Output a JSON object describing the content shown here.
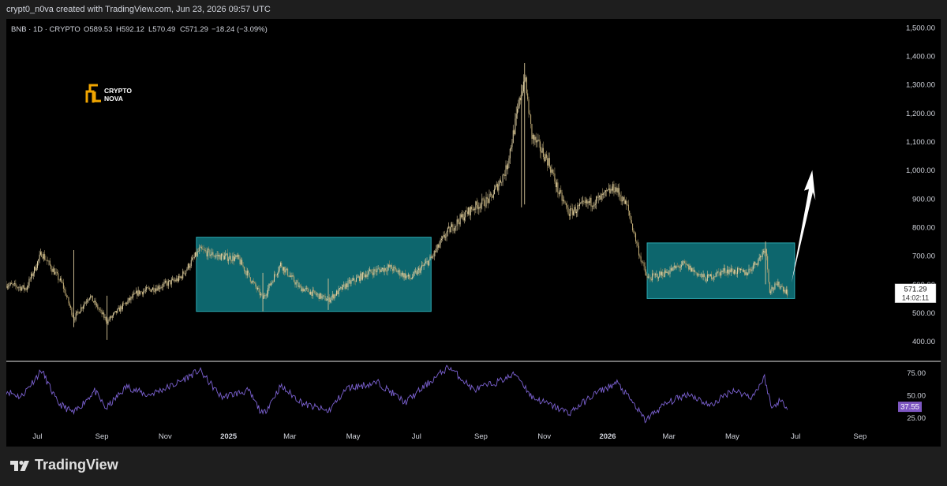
{
  "header": {
    "credit": "crypt0_n0va created with TradingView.com, Jun 23, 2026 09:57 UTC"
  },
  "legend": {
    "symbol": "BNB · 1D · CRYPTO",
    "open": "O589.53",
    "high": "H592.12",
    "low": "L570.49",
    "close": "C571.29",
    "change": "−18.24 (−3.09%)"
  },
  "watermark": {
    "line1": "CRYPTO",
    "line2": "NOVA"
  },
  "price_label": {
    "value": "571.29",
    "countdown": "14:02:11"
  },
  "rsi_label": {
    "value": "37.55"
  },
  "footer": {
    "brand": "TradingView"
  },
  "colors": {
    "background": "#000000",
    "candles": "#c8b27a",
    "zone": "#0e6f76",
    "zone_border": "#2ba7b0",
    "rsi_line": "#7b61d1",
    "rsi_badge": "#7e57c2",
    "arrow": "#ffffff"
  },
  "chart_data": [
    {
      "type": "candlestick",
      "symbol": "BNB",
      "timeframe": "1D",
      "x_ticks": [
        "Jul",
        "Sep",
        "Nov",
        "2025",
        "Mar",
        "May",
        "Jul",
        "Sep",
        "Nov",
        "2026",
        "Mar",
        "May",
        "Jul",
        "Sep"
      ],
      "y_ticks": [
        "1,500.00",
        "1,400.00",
        "1,300.00",
        "1,200.00",
        "1,100.00",
        "1,000.00",
        "900.00",
        "800.00",
        "700.00",
        "600.00",
        "500.00",
        "400.00"
      ],
      "ylim": [
        330,
        1530
      ],
      "x_range": [
        "2024-06-01",
        "2026-09-30"
      ],
      "series": [
        {
          "values": [
            [
              "2024-06-01",
              600
            ],
            [
              "2024-06-20",
              585
            ],
            [
              "2024-07-05",
              710
            ],
            [
              "2024-07-25",
              600
            ],
            [
              "2024-08-05",
              480
            ],
            [
              "2024-08-20",
              560
            ],
            [
              "2024-09-06",
              470
            ],
            [
              "2024-09-20",
              520
            ],
            [
              "2024-10-05",
              570
            ],
            [
              "2024-10-25",
              590
            ],
            [
              "2024-11-15",
              620
            ],
            [
              "2024-12-04",
              720
            ],
            [
              "2024-12-20",
              700
            ],
            [
              "2025-01-10",
              690
            ],
            [
              "2025-02-03",
              550
            ],
            [
              "2025-02-20",
              670
            ],
            [
              "2025-03-10",
              590
            ],
            [
              "2025-04-07",
              545
            ],
            [
              "2025-04-25",
              600
            ],
            [
              "2025-05-15",
              640
            ],
            [
              "2025-06-05",
              660
            ],
            [
              "2025-06-25",
              620
            ],
            [
              "2025-07-15",
              690
            ],
            [
              "2025-07-30",
              780
            ],
            [
              "2025-08-15",
              840
            ],
            [
              "2025-08-25",
              870
            ],
            [
              "2025-09-10",
              900
            ],
            [
              "2025-09-25",
              1000
            ],
            [
              "2025-10-05",
              1180
            ],
            [
              "2025-10-13",
              1330
            ],
            [
              "2025-10-20",
              1120
            ],
            [
              "2025-11-05",
              1030
            ],
            [
              "2025-11-15",
              920
            ],
            [
              "2025-11-25",
              850
            ],
            [
              "2025-12-10",
              880
            ],
            [
              "2025-12-25",
              900
            ],
            [
              "2026-01-08",
              940
            ],
            [
              "2026-01-20",
              870
            ],
            [
              "2026-02-01",
              700
            ],
            [
              "2026-02-08",
              620
            ],
            [
              "2026-02-25",
              640
            ],
            [
              "2026-03-15",
              670
            ],
            [
              "2026-04-05",
              620
            ],
            [
              "2026-04-25",
              650
            ],
            [
              "2026-05-15",
              640
            ],
            [
              "2026-05-27",
              690
            ],
            [
              "2026-06-02",
              730
            ],
            [
              "2026-06-06",
              580
            ],
            [
              "2026-06-15",
              600
            ],
            [
              "2026-06-23",
              571.29
            ]
          ]
        }
      ],
      "annotations": [
        {
          "kind": "range-box",
          "from": "2024-12-01",
          "to": "2025-07-15",
          "low": 505,
          "high": 765
        },
        {
          "kind": "range-box",
          "from": "2026-02-08",
          "to": "2026-06-30",
          "low": 550,
          "high": 745
        },
        {
          "kind": "arrow-up",
          "from": [
            "2026-06-27",
            605
          ],
          "to": [
            "2026-07-17",
            1000
          ]
        }
      ],
      "last_price": 571.29
    },
    {
      "type": "line",
      "indicator": "RSI",
      "y_ticks": [
        "75.00",
        "50.00",
        "25.00"
      ],
      "ylim": [
        12,
        88
      ],
      "series": [
        {
          "values": [
            [
              "2024-06-01",
              55
            ],
            [
              "2024-06-15",
              48
            ],
            [
              "2024-07-05",
              78
            ],
            [
              "2024-07-20",
              42
            ],
            [
              "2024-08-05",
              30
            ],
            [
              "2024-08-25",
              55
            ],
            [
              "2024-09-05",
              35
            ],
            [
              "2024-09-25",
              60
            ],
            [
              "2024-10-15",
              50
            ],
            [
              "2024-11-10",
              62
            ],
            [
              "2024-12-04",
              78
            ],
            [
              "2024-12-25",
              48
            ],
            [
              "2025-01-20",
              55
            ],
            [
              "2025-02-03",
              28
            ],
            [
              "2025-02-20",
              60
            ],
            [
              "2025-03-15",
              40
            ],
            [
              "2025-04-07",
              32
            ],
            [
              "2025-04-25",
              58
            ],
            [
              "2025-05-25",
              64
            ],
            [
              "2025-06-20",
              42
            ],
            [
              "2025-07-15",
              66
            ],
            [
              "2025-08-01",
              82
            ],
            [
              "2025-08-25",
              56
            ],
            [
              "2025-09-15",
              64
            ],
            [
              "2025-10-05",
              74
            ],
            [
              "2025-10-20",
              48
            ],
            [
              "2025-11-05",
              40
            ],
            [
              "2025-11-25",
              30
            ],
            [
              "2025-12-20",
              52
            ],
            [
              "2026-01-10",
              64
            ],
            [
              "2026-01-25",
              42
            ],
            [
              "2026-02-06",
              22
            ],
            [
              "2026-02-25",
              40
            ],
            [
              "2026-03-20",
              52
            ],
            [
              "2026-04-10",
              38
            ],
            [
              "2026-05-01",
              56
            ],
            [
              "2026-05-20",
              48
            ],
            [
              "2026-06-01",
              70
            ],
            [
              "2026-06-08",
              35
            ],
            [
              "2026-06-15",
              44
            ],
            [
              "2026-06-23",
              37.55
            ]
          ]
        }
      ],
      "last_value": 37.55
    }
  ]
}
